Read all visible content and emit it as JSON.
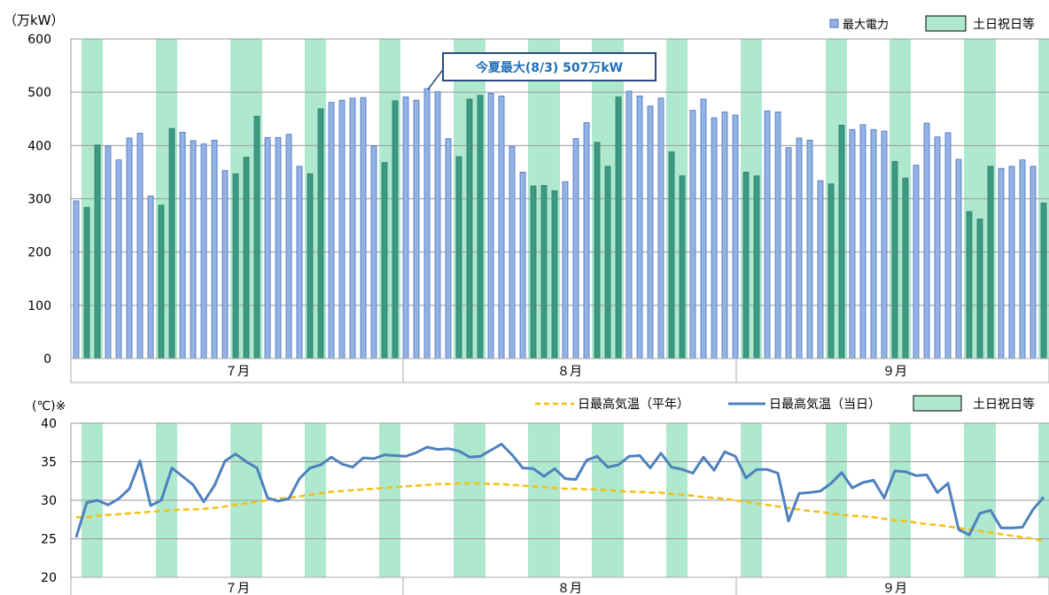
{
  "chart_data": [
    {
      "type": "bar",
      "unit_label": "（万kW）",
      "ylim": [
        0,
        600
      ],
      "yticks": [
        0,
        100,
        200,
        300,
        400,
        500,
        600
      ],
      "months": [
        "７月",
        "８月",
        "９月"
      ],
      "legend": {
        "bar_label": "最大電力",
        "holiday_label": "土日祝日等"
      },
      "annotation": "今夏最大(8/3) 507万kW",
      "colors": {
        "bar": "#95b3e2",
        "bar_stroke": "#4472c4",
        "holiday": "#aee8cf",
        "holiday_bar": "#3c9a82",
        "annotation_border": "#2c4a7a",
        "annotation_text": "#1f6fb9"
      },
      "holidays": [
        1,
        2,
        8,
        9,
        15,
        16,
        17,
        22,
        23,
        29,
        30,
        36,
        37,
        38,
        43,
        44,
        45,
        49,
        50,
        51,
        56,
        57,
        63,
        64,
        71,
        72,
        77,
        78,
        84,
        85,
        86,
        91,
        92,
        98
      ],
      "values": [
        296,
        284,
        401,
        399,
        373,
        414,
        423,
        305,
        288,
        432,
        425,
        409,
        403,
        410,
        353,
        347,
        378,
        455,
        415,
        415,
        421,
        361,
        347,
        469,
        481,
        485,
        489,
        490,
        399,
        368,
        484,
        491,
        485,
        507,
        501,
        413,
        379,
        487,
        494,
        498,
        493,
        398,
        350,
        324,
        325,
        315,
        332,
        413,
        443,
        406,
        361,
        491,
        502,
        493,
        474,
        489,
        388,
        343,
        466,
        487,
        452,
        463,
        457,
        350,
        343,
        465,
        463,
        396,
        414,
        410,
        334,
        328,
        438,
        430,
        439,
        430,
        427,
        370,
        339,
        363,
        442,
        416,
        424,
        374,
        276,
        262,
        361,
        357,
        361,
        373,
        361,
        292
      ]
    },
    {
      "type": "line",
      "unit_label": "(℃)※",
      "ylim": [
        20,
        40
      ],
      "yticks": [
        20,
        25,
        30,
        35,
        40
      ],
      "months": [
        "７月",
        "８月",
        "９月"
      ],
      "legend": {
        "normal_label": "日最高気温（平年）",
        "actual_label": "日最高気温（当日）",
        "holiday_label": "土日祝日等"
      },
      "colors": {
        "actual": "#4e81bd",
        "normal": "#f5c014",
        "holiday": "#aee8cf"
      },
      "holidays": [
        1,
        2,
        8,
        9,
        15,
        16,
        17,
        22,
        23,
        29,
        30,
        36,
        37,
        38,
        43,
        44,
        45,
        49,
        50,
        51,
        56,
        57,
        63,
        64,
        71,
        72,
        77,
        78,
        84,
        85,
        86,
        91,
        92,
        98
      ],
      "series": [
        {
          "name": "日最高気温（当日）",
          "values": [
            25.2,
            29.7,
            30.0,
            29.4,
            30.2,
            31.5,
            35.1,
            29.3,
            30.0,
            34.2,
            33.1,
            32.0,
            29.8,
            31.9,
            35.1,
            36.0,
            35.0,
            34.2,
            30.3,
            29.9,
            30.2,
            32.8,
            34.2,
            34.6,
            35.6,
            34.7,
            34.3,
            35.5,
            35.4,
            35.9,
            35.8,
            35.7,
            36.2,
            36.9,
            36.6,
            36.7,
            36.4,
            35.6,
            35.7,
            36.5,
            37.3,
            35.9,
            34.2,
            34.1,
            33.1,
            34.1,
            32.8,
            32.7,
            35.2,
            35.7,
            34.3,
            34.6,
            35.7,
            35.8,
            34.2,
            36.1,
            34.3,
            34.0,
            33.5,
            35.6,
            33.9,
            36.3,
            35.7,
            32.9,
            34.0,
            34.0,
            33.5,
            27.3,
            30.9,
            31.0,
            31.2,
            32.2,
            33.6,
            31.6,
            32.3,
            32.6,
            30.3,
            33.8,
            33.7,
            33.2,
            33.3,
            31.0,
            32.2,
            26.2,
            25.5,
            28.3,
            28.7,
            26.4,
            26.4,
            26.5,
            28.8,
            30.4
          ]
        },
        {
          "name": "日最高気温（平年）",
          "values": [
            27.8,
            27.8,
            28.0,
            28.1,
            28.2,
            28.3,
            28.4,
            28.5,
            28.6,
            28.7,
            28.8,
            28.8,
            28.9,
            29.0,
            29.2,
            29.4,
            29.6,
            29.8,
            30.0,
            30.2,
            30.3,
            30.5,
            30.7,
            30.9,
            31.1,
            31.2,
            31.3,
            31.4,
            31.5,
            31.6,
            31.7,
            31.8,
            31.9,
            32.0,
            32.1,
            32.1,
            32.2,
            32.2,
            32.2,
            32.1,
            32.1,
            32.0,
            31.9,
            31.8,
            31.7,
            31.6,
            31.5,
            31.5,
            31.4,
            31.4,
            31.3,
            31.2,
            31.1,
            31.1,
            31.0,
            31.0,
            30.8,
            30.7,
            30.6,
            30.4,
            30.3,
            30.2,
            30.0,
            29.8,
            29.6,
            29.4,
            29.2,
            29.0,
            28.8,
            28.6,
            28.5,
            28.3,
            28.1,
            28.0,
            27.9,
            27.8,
            27.6,
            27.4,
            27.3,
            27.1,
            26.9,
            26.8,
            26.6,
            26.4,
            26.2,
            26.0,
            25.8,
            25.6,
            25.4,
            25.2,
            25.0,
            24.7
          ]
        }
      ]
    }
  ]
}
